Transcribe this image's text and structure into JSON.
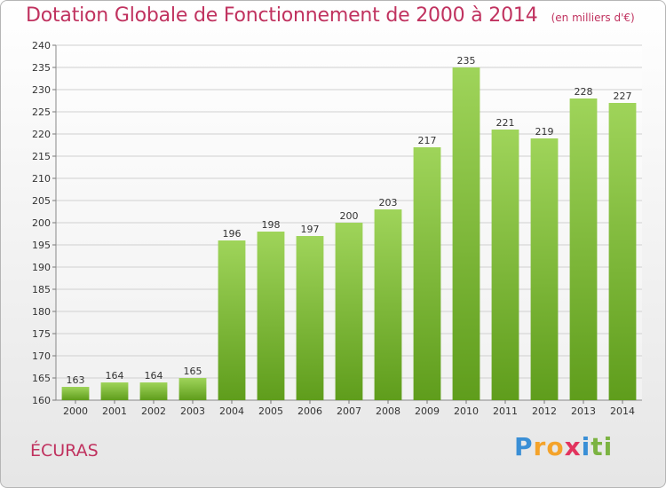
{
  "header": {
    "title": "Dotation Globale de Fonctionnement de 2000 à 2014",
    "subtitle": "(en milliers d'€)"
  },
  "footer": {
    "commune": "ÉCURAS",
    "logo": [
      "P",
      "r",
      "o",
      "x",
      "i",
      "t",
      "i"
    ],
    "logo_colors": [
      "#3a8fd6",
      "#f4a32b",
      "#f4a32b",
      "#e2345e",
      "#3a8fd6",
      "#7cb342",
      "#7cb342"
    ]
  },
  "colors": {
    "title": "#c0325f",
    "bar_light": "#9fd45a",
    "bar_dark": "#5f9d1c",
    "grid": "#d0d0d0"
  },
  "chart_data": {
    "type": "bar",
    "categories": [
      "2000",
      "2001",
      "2002",
      "2003",
      "2004",
      "2005",
      "2006",
      "2007",
      "2008",
      "2009",
      "2010",
      "2011",
      "2012",
      "2013",
      "2014"
    ],
    "values": [
      163,
      164,
      164,
      165,
      196,
      198,
      197,
      200,
      203,
      217,
      235,
      221,
      219,
      228,
      227
    ],
    "title": "Dotation Globale de Fonctionnement de 2000 à 2014",
    "subtitle": "(en milliers d'€)",
    "xlabel": "",
    "ylabel": "",
    "ylim": [
      160,
      240
    ],
    "ytick_step": 5,
    "yticks": [
      "160",
      "165",
      "170",
      "175",
      "180",
      "185",
      "190",
      "195",
      "200",
      "205",
      "210",
      "215",
      "220",
      "225",
      "230",
      "235",
      "240"
    ],
    "grid": true,
    "data_labels": true
  }
}
